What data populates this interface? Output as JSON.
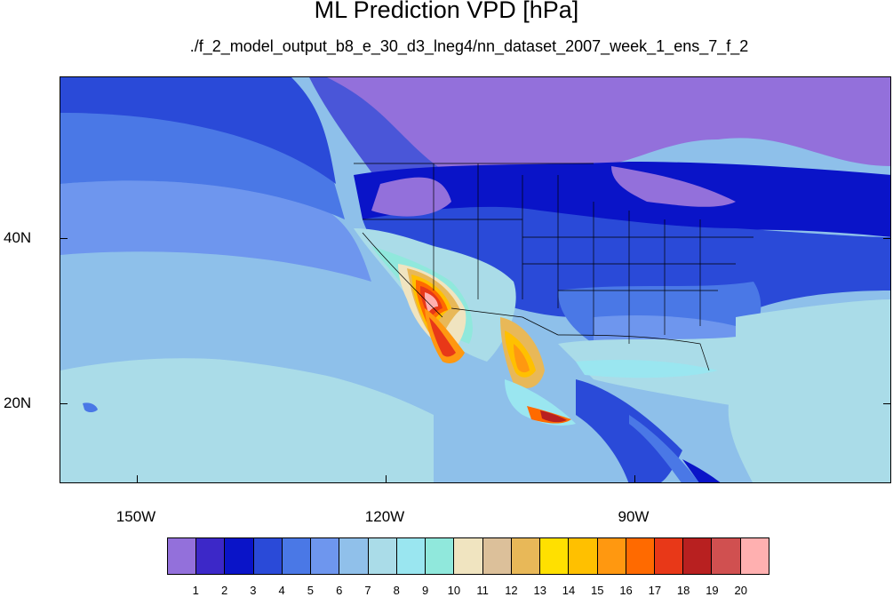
{
  "title": "ML Prediction VPD [hPa]",
  "subtitle": "./f_2_model_output_b8_e_30_d3_lneg4/nn_dataset_2007_week_1_ens_7_f_2",
  "lat_labels": [
    "40N",
    "20N"
  ],
  "lon_labels": [
    "150W",
    "120W",
    "90W"
  ],
  "colorbar": {
    "levels": [
      "1",
      "2",
      "3",
      "4",
      "5",
      "6",
      "7",
      "8",
      "9",
      "10",
      "11",
      "12",
      "13",
      "14",
      "15",
      "16",
      "17",
      "18",
      "19",
      "20"
    ],
    "colors": [
      "#9370db",
      "#3c28c8",
      "#0a14c8",
      "#2a4ad8",
      "#4a78e6",
      "#6e96ee",
      "#90c0ea",
      "#aadce8",
      "#9ae6f0",
      "#90e8dc",
      "#f0e4c0",
      "#dcc09a",
      "#e8b858",
      "#ffe000",
      "#ffc000",
      "#ff9810",
      "#ff6a00",
      "#e83818",
      "#b82020",
      "#d05050",
      "#ffb0b0"
    ]
  },
  "map_colors": {
    "purple": "#9370db",
    "indigo": "#3c28c8",
    "deep_blue": "#0a14c8",
    "blue": "#2a4ad8",
    "mid_blue": "#4a78e6",
    "light_blue": "#6e96ee",
    "sky": "#90c0ea",
    "pale": "#aadce8",
    "cyan": "#9ae6f0",
    "beige": "#f0e4c0",
    "tan": "#dcc09a",
    "gold": "#e8b858",
    "yellow": "#ffe000",
    "orange": "#ff9810",
    "red": "#e83818",
    "dark_red": "#b82020",
    "pink": "#ffb0b0"
  }
}
